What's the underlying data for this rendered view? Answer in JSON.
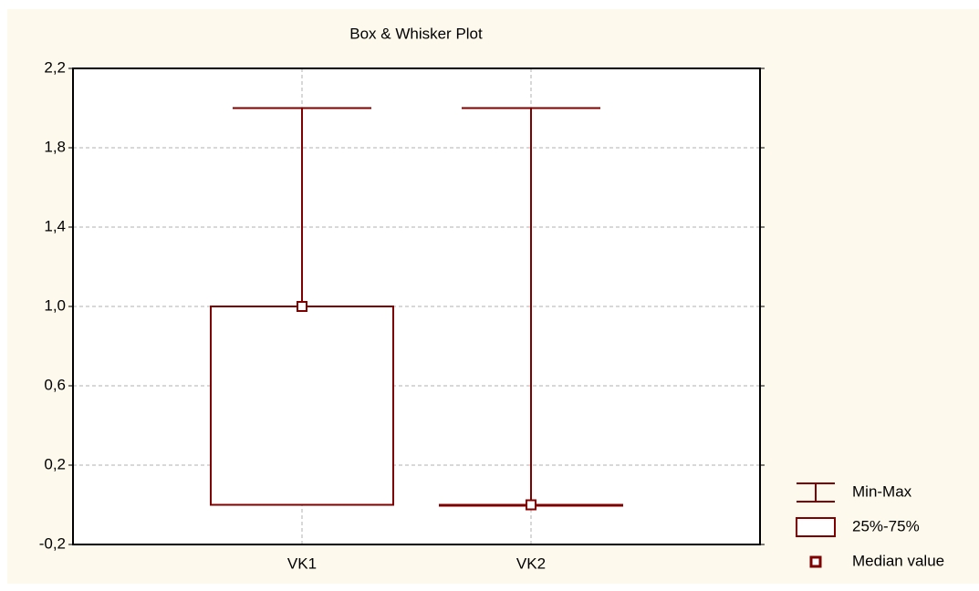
{
  "chart_data": {
    "type": "box",
    "title": "Box & Whisker Plot",
    "categories": [
      "VK1",
      "VK2"
    ],
    "min": [
      0,
      0
    ],
    "q1": [
      0,
      0
    ],
    "median": [
      1.0,
      0
    ],
    "q3": [
      1.0,
      0
    ],
    "max": [
      2.0,
      2.0
    ],
    "color": "#800000",
    "ylim": [
      -0.2,
      2.2
    ],
    "yticks": [
      {
        "value": -0.2,
        "label": "-0,2"
      },
      {
        "value": 0.2,
        "label": "0,2"
      },
      {
        "value": 0.6,
        "label": "0,6"
      },
      {
        "value": 1.0,
        "label": "1,0"
      },
      {
        "value": 1.4,
        "label": "1,4"
      },
      {
        "value": 1.8,
        "label": "1,8"
      },
      {
        "value": 2.2,
        "label": "2,2"
      }
    ],
    "grid": true,
    "legend": [
      "Min-Max",
      "25%-75%",
      "Median value"
    ]
  }
}
